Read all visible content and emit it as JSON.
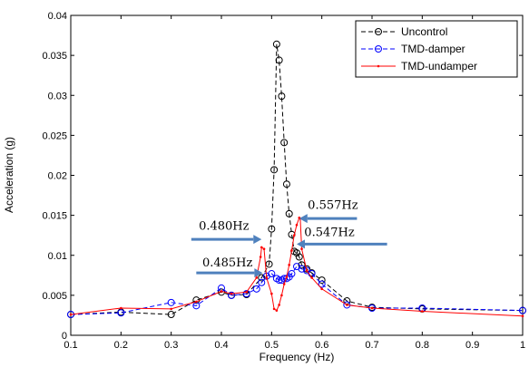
{
  "chart_data": {
    "type": "line",
    "title": "",
    "xlabel": "Frequency (Hz)",
    "ylabel": "Acceleration (g)",
    "xlim": [
      0.1,
      1.0
    ],
    "ylim": [
      0,
      0.04
    ],
    "xticks": [
      0.1,
      0.2,
      0.3,
      0.4,
      0.5,
      0.6,
      0.7,
      0.8,
      0.9,
      1
    ],
    "xtick_labels": [
      "0.1",
      "0.2",
      "0.3",
      "0.4",
      "0.5",
      "0.6",
      "0.7",
      "0.8",
      "0.9",
      "1"
    ],
    "yticks": [
      0,
      0.005,
      0.01,
      0.015,
      0.02,
      0.025,
      0.03,
      0.035,
      0.04
    ],
    "ytick_labels": [
      "0",
      "0.005",
      "0.01",
      "0.015",
      "0.02",
      "0.025",
      "0.03",
      "0.035",
      "0.04"
    ],
    "grid": false,
    "legend_position": "top-right",
    "series": [
      {
        "name": "Uncontrol",
        "color": "#000000",
        "line": "dashed",
        "marker": "circle",
        "x": [
          0.1,
          0.2,
          0.3,
          0.35,
          0.4,
          0.42,
          0.45,
          0.48,
          0.495,
          0.5,
          0.505,
          0.51,
          0.515,
          0.52,
          0.525,
          0.53,
          0.535,
          0.54,
          0.545,
          0.55,
          0.555,
          0.56,
          0.57,
          0.58,
          0.6,
          0.65,
          0.7,
          0.8,
          1.0
        ],
        "y": [
          0.0026,
          0.0029,
          0.0026,
          0.0044,
          0.0054,
          0.005,
          0.0051,
          0.0072,
          0.0089,
          0.0133,
          0.0207,
          0.0364,
          0.0344,
          0.0299,
          0.0241,
          0.0189,
          0.0152,
          0.0126,
          0.0105,
          0.0103,
          0.0098,
          0.0088,
          0.0083,
          0.0078,
          0.0069,
          0.0043,
          0.0035,
          0.0033,
          0.0031
        ]
      },
      {
        "name": "TMD-damper",
        "color": "#0000ff",
        "line": "dashed",
        "marker": "circle",
        "x": [
          0.1,
          0.2,
          0.3,
          0.35,
          0.4,
          0.42,
          0.45,
          0.47,
          0.48,
          0.49,
          0.5,
          0.51,
          0.515,
          0.52,
          0.525,
          0.53,
          0.535,
          0.54,
          0.55,
          0.56,
          0.57,
          0.58,
          0.6,
          0.65,
          0.7,
          0.8,
          1.0
        ],
        "y": [
          0.0026,
          0.0028,
          0.0041,
          0.0037,
          0.0059,
          0.005,
          0.0052,
          0.0058,
          0.0066,
          0.0074,
          0.0077,
          0.0071,
          0.0069,
          0.0069,
          0.0071,
          0.0071,
          0.0073,
          0.0077,
          0.0086,
          0.0083,
          0.0081,
          0.0077,
          0.0064,
          0.0038,
          0.0034,
          0.0034,
          0.0031
        ]
      },
      {
        "name": "TMD-undamper",
        "color": "#ff0000",
        "line": "solid",
        "marker": "point",
        "x": [
          0.1,
          0.2,
          0.3,
          0.35,
          0.4,
          0.42,
          0.45,
          0.47,
          0.478,
          0.48,
          0.485,
          0.49,
          0.5,
          0.505,
          0.51,
          0.515,
          0.52,
          0.525,
          0.53,
          0.535,
          0.54,
          0.545,
          0.55,
          0.555,
          0.557,
          0.56,
          0.57,
          0.58,
          0.6,
          0.65,
          0.7,
          0.8,
          1.0
        ],
        "y": [
          0.0026,
          0.0034,
          0.0033,
          0.0042,
          0.0055,
          0.0052,
          0.0054,
          0.0072,
          0.0098,
          0.011,
          0.0108,
          0.0072,
          0.0052,
          0.0033,
          0.0031,
          0.0038,
          0.005,
          0.0064,
          0.0073,
          0.0088,
          0.0106,
          0.0125,
          0.0138,
          0.0147,
          0.0146,
          0.0108,
          0.0081,
          0.0072,
          0.0058,
          0.0038,
          0.0034,
          0.003,
          0.0024
        ]
      }
    ],
    "annotations": [
      {
        "text": "0.480Hz",
        "arrow_to_x": 0.48,
        "arrow_to_y": 0.012,
        "arrow_from_x": 0.34,
        "arrow_from_y": 0.012,
        "label_x": 0.355,
        "label_y": 0.0132
      },
      {
        "text": "0.485Hz",
        "arrow_to_x": 0.482,
        "arrow_to_y": 0.0078,
        "arrow_from_x": 0.35,
        "arrow_from_y": 0.0078,
        "label_x": 0.362,
        "label_y": 0.0086
      },
      {
        "text": "0.557Hz",
        "arrow_to_x": 0.555,
        "arrow_to_y": 0.0146,
        "arrow_from_x": 0.67,
        "arrow_from_y": 0.0146,
        "label_x": 0.572,
        "label_y": 0.0158
      },
      {
        "text": "0.547Hz",
        "arrow_to_x": 0.55,
        "arrow_to_y": 0.0114,
        "arrow_from_x": 0.73,
        "arrow_from_y": 0.0114,
        "label_x": 0.565,
        "label_y": 0.0124
      }
    ]
  }
}
